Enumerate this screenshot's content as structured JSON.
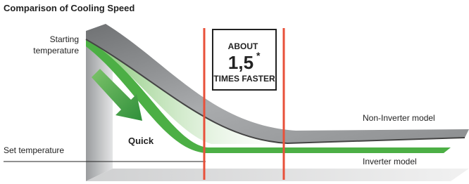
{
  "title": "Comparison of Cooling Speed",
  "labels": {
    "starting": [
      "Starting",
      "temperature"
    ],
    "set": "Set temperature",
    "quick": "Quick",
    "non_inverter": "Non-Inverter model",
    "inverter": "Inverter model"
  },
  "callout": {
    "top": "ABOUT",
    "number": "1,5",
    "mark": "*",
    "bottom": "TIMES FASTER"
  }
}
